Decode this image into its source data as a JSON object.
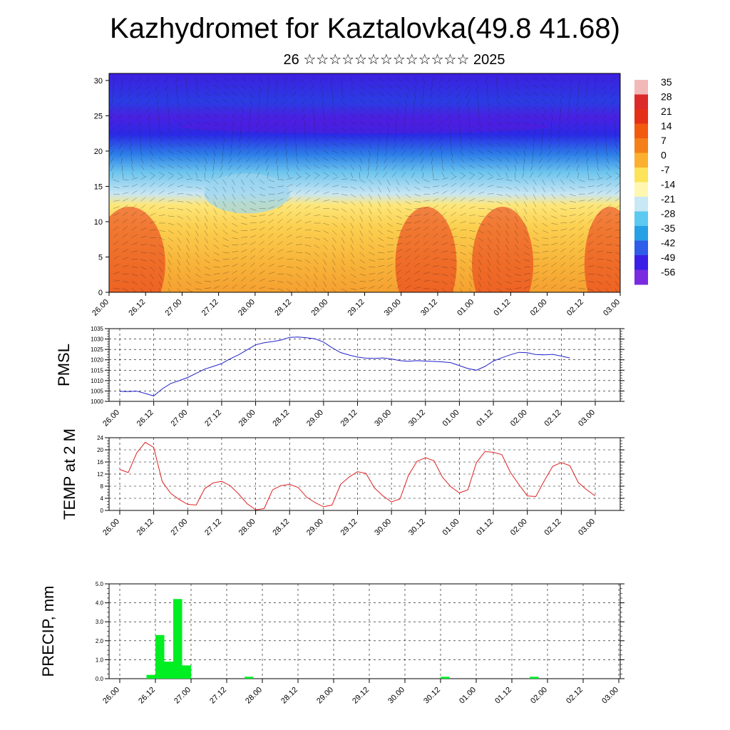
{
  "title": "Kazhydromet for Kaztalovka(49.8 41.68)",
  "subtitle": "26 ☆☆☆☆☆☆☆☆☆☆☆☆☆ 2025",
  "time_labels": [
    "26.00",
    "26.12",
    "27.00",
    "27.12",
    "28.00",
    "28.12",
    "29.00",
    "29.12",
    "30.00",
    "30.12",
    "01.00",
    "01.12",
    "02.00",
    "02.12",
    "03.00"
  ],
  "chart_data": [
    {
      "type": "heatmap",
      "name": "vertical-section",
      "ylim": [
        0,
        31
      ],
      "y_ticks": [
        "0",
        "5",
        "10",
        "15",
        "20",
        "25",
        "30"
      ],
      "colorbar": {
        "labels": [
          "35",
          "28",
          "21",
          "14",
          "7",
          "0",
          "-7",
          "-14",
          "-21",
          "-28",
          "-35",
          "-42",
          "-49",
          "-56"
        ],
        "colors": [
          "#f2b9b9",
          "#dc2a2a",
          "#e53018",
          "#f25a0f",
          "#f5801a",
          "#fbb030",
          "#fde35a",
          "#fff7b0",
          "#c8e8f5",
          "#5ccaf0",
          "#28a0e6",
          "#2f5ce8",
          "#3a1fe6",
          "#7a2be0"
        ]
      },
      "bands_note": ""
    },
    {
      "type": "line",
      "name": "pmsl",
      "ylabel": "PMSL",
      "ylim": [
        1000,
        1035
      ],
      "y_ticks": [
        "1000",
        "1005",
        "1010",
        "1015",
        "1020",
        "1025",
        "1030",
        "1035"
      ],
      "color": "#2222cc",
      "x": [
        0,
        1,
        2,
        3,
        4,
        5,
        6,
        7,
        8,
        9,
        10,
        11,
        12,
        13,
        14,
        15,
        16,
        17,
        18,
        19,
        20,
        21,
        22,
        23,
        24,
        25,
        26,
        27,
        28,
        29,
        30,
        31,
        32,
        33,
        34,
        35,
        36,
        37,
        38,
        39,
        40,
        41,
        42,
        43,
        44,
        45,
        46,
        47,
        48,
        49,
        50,
        51,
        52,
        53,
        54,
        55,
        56
      ],
      "values": [
        1004.8,
        1004.7,
        1004.9,
        1003.8,
        1002.6,
        1006.0,
        1008.6,
        1010.0,
        1011.5,
        1013.5,
        1015.5,
        1016.8,
        1018.2,
        1020.5,
        1022.4,
        1024.8,
        1027.2,
        1028.2,
        1028.8,
        1029.5,
        1030.8,
        1031.0,
        1030.6,
        1030.1,
        1028.5,
        1025.8,
        1023.5,
        1022.3,
        1021.3,
        1020.8,
        1020.7,
        1020.9,
        1020.4,
        1019.6,
        1019.3,
        1019.6,
        1019.4,
        1019.2,
        1019.0,
        1018.6,
        1017.2,
        1015.8,
        1015.0,
        1016.8,
        1019.4,
        1021.0,
        1022.4,
        1023.6,
        1023.4,
        1022.5,
        1022.4,
        1022.6,
        1021.8,
        1020.9,
        null,
        null,
        null
      ],
      "x_end": 53
    },
    {
      "type": "line",
      "name": "temp2m",
      "ylabel": "TEMP at 2 M",
      "ylim": [
        0,
        24
      ],
      "y_ticks": [
        "0",
        "4",
        "8",
        "12",
        "16",
        "20",
        "24"
      ],
      "color": "#dd2222",
      "values": [
        13.5,
        12.5,
        19.0,
        22.5,
        20.8,
        9.5,
        5.6,
        3.6,
        2.0,
        1.8,
        7.2,
        9.1,
        9.6,
        8.2,
        5.4,
        2.2,
        0.2,
        0.6,
        6.8,
        8.2,
        8.6,
        7.6,
        4.4,
        2.6,
        1.2,
        1.8,
        8.6,
        11.0,
        12.8,
        12.2,
        7.4,
        4.8,
        2.8,
        3.8,
        11.6,
        16.2,
        17.4,
        16.4,
        11.0,
        7.8,
        5.8,
        6.8,
        15.8,
        19.4,
        19.2,
        18.4,
        12.6,
        8.6,
        4.8,
        4.6,
        9.8,
        14.6,
        15.8,
        14.8,
        9.2,
        6.8,
        4.8
      ]
    },
    {
      "type": "bar",
      "name": "precip",
      "ylabel": "PRECIP, mm",
      "ylim": [
        0,
        5
      ],
      "y_ticks": [
        "0.0",
        "1.0",
        "2.0",
        "3.0",
        "4.0",
        "5.0"
      ],
      "color": "#00ee22",
      "values": [
        0,
        0,
        0,
        0.2,
        2.3,
        0.9,
        4.2,
        0.7,
        0,
        0,
        0,
        0,
        0,
        0,
        0.1,
        0,
        0,
        0,
        0,
        0,
        0,
        0,
        0,
        0,
        0,
        0,
        0,
        0,
        0,
        0,
        0,
        0,
        0,
        0,
        0,
        0,
        0.1,
        0,
        0,
        0,
        0,
        0,
        0,
        0,
        0,
        0,
        0.1,
        0,
        0,
        0,
        0,
        0,
        0,
        0,
        0,
        0,
        0
      ]
    }
  ]
}
